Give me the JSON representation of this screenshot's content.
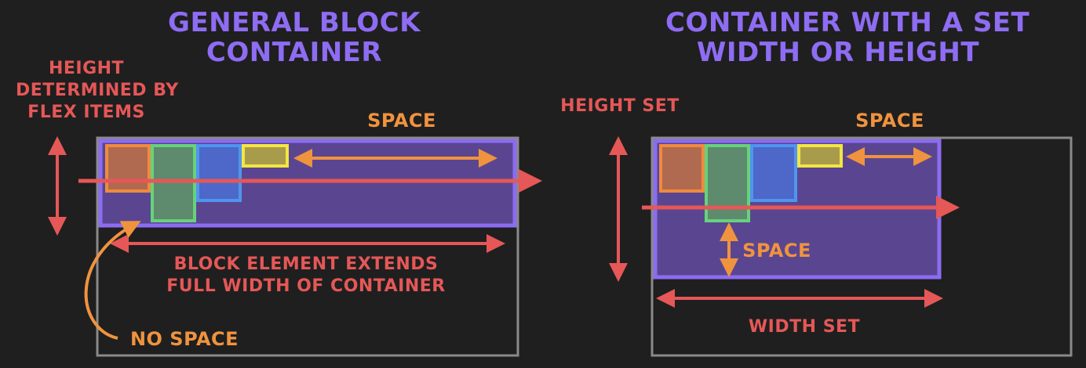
{
  "left": {
    "title_line1": "GENERAL BLOCK",
    "title_line2": "CONTAINER",
    "height_label_line1": "HEIGHT",
    "height_label_line2": "DETERMINED BY",
    "height_label_line3": "FLEX ITEMS",
    "space_label": "SPACE",
    "block_label_line1": "BLOCK ELEMENT EXTENDS",
    "block_label_line2": "FULL WIDTH OF CONTAINER",
    "no_space_label": "NO SPACE"
  },
  "right": {
    "title_line1": "CONTAINER WITH A SET",
    "title_line2": "WIDTH OR HEIGHT",
    "height_label": "HEIGHT SET",
    "space_label_top": "SPACE",
    "space_label_bottom": "SPACE",
    "width_label": "WIDTH SET"
  },
  "colors": {
    "background": "#1f1f1f",
    "title": "#8e6cf3",
    "red": "#e65757",
    "orange": "#f0933f",
    "container_border": "#8a8a8a",
    "flex_container_fill": "#5a4690",
    "flex_container_border": "#8c6cf2",
    "item_orange": "#f08a3e",
    "item_green": "#66d27a",
    "item_blue": "#4f95f0",
    "item_yellow": "#f4e542"
  }
}
